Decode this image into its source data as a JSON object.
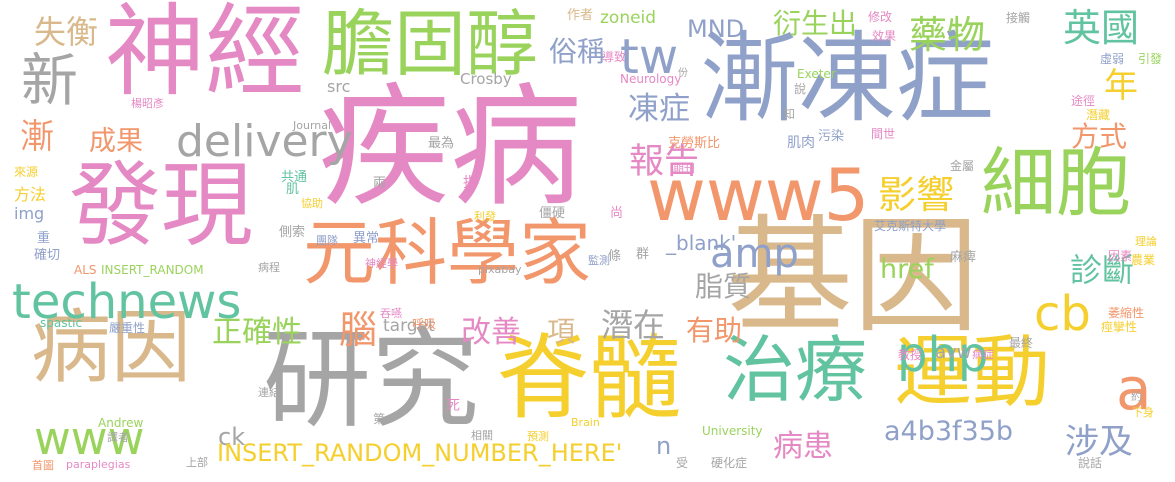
{
  "colors": {
    "pink": "#e589c4",
    "blue": "#8fa0c9",
    "tan": "#d9b98c",
    "gray": "#a5a5a5",
    "yellow": "#f5cf2e",
    "green": "#9ad35c",
    "teal": "#62c3a1",
    "orange": "#f2966b"
  },
  "words": [
    {
      "text": "疾病",
      "color": "#e589c4"
    },
    {
      "text": "漸凍症",
      "color": "#8fa0c9"
    },
    {
      "text": "基因",
      "color": "#d9b98c"
    },
    {
      "text": "神經",
      "color": "#e589c4"
    },
    {
      "text": "發現",
      "color": "#e589c4"
    },
    {
      "text": "脊髓",
      "color": "#f5cf2e"
    },
    {
      "text": "研究",
      "color": "#a5a5a5"
    },
    {
      "text": "膽固醇",
      "color": "#9ad35c"
    },
    {
      "text": "元科學家",
      "color": "#f2966b"
    },
    {
      "text": "病因",
      "color": "#d9b98c"
    },
    {
      "text": "細胞",
      "color": "#9ad35c"
    },
    {
      "text": "運動",
      "color": "#f5cf2e"
    },
    {
      "text": "治療",
      "color": "#62c3a1"
    },
    {
      "text": "www5",
      "color": "#f2966b"
    },
    {
      "text": "technews",
      "color": "#62c3a1"
    },
    {
      "text": "新",
      "color": "#a5a5a5"
    },
    {
      "text": "www",
      "color": "#9ad35c"
    },
    {
      "text": "delivery",
      "color": "#a5a5a5"
    },
    {
      "text": "tw",
      "color": "#8fa0c9"
    },
    {
      "text": "藥物",
      "color": "#9ad35c"
    },
    {
      "text": "英國",
      "color": "#62c3a1"
    },
    {
      "text": "影響",
      "color": "#f5cf2e"
    },
    {
      "text": "php",
      "color": "#62c3a1"
    },
    {
      "text": "a",
      "color": "#f2966b"
    },
    {
      "text": "cb",
      "color": "#f5cf2e"
    },
    {
      "text": "amp",
      "color": "#8fa0c9"
    },
    {
      "text": "報告",
      "color": "#e589c4"
    },
    {
      "text": "凍症",
      "color": "#8fa0c9"
    },
    {
      "text": "MND",
      "color": "#8fa0c9"
    },
    {
      "text": "衍生出",
      "color": "#9ad35c"
    },
    {
      "text": "俗稱",
      "color": "#8fa0c9"
    },
    {
      "text": "年",
      "color": "#f5cf2e"
    },
    {
      "text": "方式",
      "color": "#f2966b"
    },
    {
      "text": "漸",
      "color": "#f2966b"
    },
    {
      "text": "成果",
      "color": "#f2966b"
    },
    {
      "text": "失衡",
      "color": "#d9b98c"
    },
    {
      "text": "正確性",
      "color": "#9ad35c"
    },
    {
      "text": "腦",
      "color": "#f2966b"
    },
    {
      "text": "改善",
      "color": "#e589c4"
    },
    {
      "text": "項",
      "color": "#d9b98c"
    },
    {
      "text": "潛在",
      "color": "#a5a5a5"
    },
    {
      "text": "有助",
      "color": "#f2966b"
    },
    {
      "text": "脂質",
      "color": "#a5a5a5"
    },
    {
      "text": "href",
      "color": "#9ad35c"
    },
    {
      "text": "診斷",
      "color": "#62c3a1"
    },
    {
      "text": "涉及",
      "color": "#8fa0c9"
    },
    {
      "text": "病患",
      "color": "#e589c4"
    },
    {
      "text": "a4b3f35b",
      "color": "#8fa0c9"
    },
    {
      "text": "_blank'",
      "color": "#8fa0c9"
    },
    {
      "text": "ck",
      "color": "#a5a5a5"
    },
    {
      "text": "n",
      "color": "#8fa0c9"
    },
    {
      "text": "INSERT_RANDOM_NUMBER_HERE'",
      "color": "#f5cf2e"
    },
    {
      "text": "target",
      "color": "#a5a5a5"
    },
    {
      "text": "avw",
      "color": "#a5a5a5"
    },
    {
      "text": "zoneid",
      "color": "#9ad35c"
    },
    {
      "text": "src",
      "color": "#a5a5a5"
    },
    {
      "text": "img",
      "color": "#8fa0c9"
    },
    {
      "text": "方法",
      "color": "#f5cf2e"
    },
    {
      "text": "Crosby",
      "color": "#a5a5a5"
    },
    {
      "text": "作者",
      "color": "#d9b98c"
    },
    {
      "text": "修改",
      "color": "#e589c4"
    },
    {
      "text": "接觸",
      "color": "#a5a5a5"
    },
    {
      "text": "效果",
      "color": "#e589c4"
    },
    {
      "text": "Exeter",
      "color": "#9ad35c"
    },
    {
      "text": "虛弱",
      "color": "#8fa0c9"
    },
    {
      "text": "引發",
      "color": "#9ad35c"
    },
    {
      "text": "Neurology",
      "color": "#e589c4"
    },
    {
      "text": "導致",
      "color": "#e589c4"
    },
    {
      "text": "份",
      "color": "#a5a5a5"
    },
    {
      "text": "說",
      "color": "#a5a5a5"
    },
    {
      "text": "知",
      "color": "#a5a5a5"
    },
    {
      "text": "途徑",
      "color": "#e589c4"
    },
    {
      "text": "潛藏",
      "color": "#f5cf2e"
    },
    {
      "text": "楊昭彥",
      "color": "#e589c4"
    },
    {
      "text": "Journal",
      "color": "#a5a5a5"
    },
    {
      "text": "最為",
      "color": "#a5a5a5"
    },
    {
      "text": "克勞斯比",
      "color": "#f2966b"
    },
    {
      "text": "肌肉",
      "color": "#8fa0c9"
    },
    {
      "text": "污染",
      "color": "#8fa0c9"
    },
    {
      "text": "間世",
      "color": "#e589c4"
    },
    {
      "text": "金屬",
      "color": "#a5a5a5"
    },
    {
      "text": "來源",
      "color": "#f5cf2e"
    },
    {
      "text": "共通",
      "color": "#62c3a1"
    },
    {
      "text": "肌",
      "color": "#62c3a1"
    },
    {
      "text": "協助",
      "color": "#f5cf2e"
    },
    {
      "text": "兩",
      "color": "#a5a5a5"
    },
    {
      "text": "指",
      "color": "#e589c4"
    },
    {
      "text": "期刊",
      "color": "#e589c4"
    },
    {
      "text": "利發",
      "color": "#f5cf2e"
    },
    {
      "text": "僵硬",
      "color": "#a5a5a5"
    },
    {
      "text": "尚",
      "color": "#e589c4"
    },
    {
      "text": "艾克斯特大學",
      "color": "#8fa0c9"
    },
    {
      "text": "重",
      "color": "#8fa0c9"
    },
    {
      "text": "確切",
      "color": "#8fa0c9"
    },
    {
      "text": "側索",
      "color": "#a5a5a5"
    },
    {
      "text": "團隊",
      "color": "#8fa0c9"
    },
    {
      "text": "異常",
      "color": "#8fa0c9"
    },
    {
      "text": "條",
      "color": "#a5a5a5"
    },
    {
      "text": "群",
      "color": "#a5a5a5"
    },
    {
      "text": "監測",
      "color": "#8fa0c9"
    },
    {
      "text": "麻痺",
      "color": "#a5a5a5"
    },
    {
      "text": "因素",
      "color": "#e589c4"
    },
    {
      "text": "理論",
      "color": "#f5cf2e"
    },
    {
      "text": "農業",
      "color": "#f5cf2e"
    },
    {
      "text": "ALS",
      "color": "#f2966b"
    },
    {
      "text": "INSERT_RANDOM",
      "color": "#9ad35c"
    },
    {
      "text": "病程",
      "color": "#a5a5a5"
    },
    {
      "text": "神經學",
      "color": "#e589c4"
    },
    {
      "text": "吞嚥",
      "color": "#e589c4"
    },
    {
      "text": "pixabay",
      "color": "#a5a5a5"
    },
    {
      "text": "spastic",
      "color": "#62c3a1"
    },
    {
      "text": "嚴重性",
      "color": "#8fa0c9"
    },
    {
      "text": "呼吸",
      "color": "#f2966b"
    },
    {
      "text": "萎縮性",
      "color": "#f2966b"
    },
    {
      "text": "教授",
      "color": "#e589c4"
    },
    {
      "text": "病症",
      "color": "#e589c4"
    },
    {
      "text": "最終",
      "color": "#a5a5a5"
    },
    {
      "text": "痙攣性",
      "color": "#f5cf2e"
    },
    {
      "text": "連結",
      "color": "#a5a5a5"
    },
    {
      "text": "第一",
      "color": "#a5a5a5"
    },
    {
      "text": "約",
      "color": "#a5a5a5"
    },
    {
      "text": "下身",
      "color": "#f5cf2e"
    },
    {
      "text": "死",
      "color": "#e589c4"
    },
    {
      "text": "Andrew",
      "color": "#9ad35c"
    },
    {
      "text": "譯者",
      "color": "#a5a5a5"
    },
    {
      "text": "University",
      "color": "#9ad35c"
    },
    {
      "text": "Brain",
      "color": "#f5cf2e"
    },
    {
      "text": "相關",
      "color": "#a5a5a5"
    },
    {
      "text": "預測",
      "color": "#f5cf2e"
    },
    {
      "text": "上部",
      "color": "#a5a5a5"
    },
    {
      "text": "首圖",
      "color": "#f2966b"
    },
    {
      "text": "paraplegias",
      "color": "#e589c4"
    },
    {
      "text": "受",
      "color": "#a5a5a5"
    },
    {
      "text": "硬化症",
      "color": "#a5a5a5"
    },
    {
      "text": "說話",
      "color": "#a5a5a5"
    }
  ]
}
